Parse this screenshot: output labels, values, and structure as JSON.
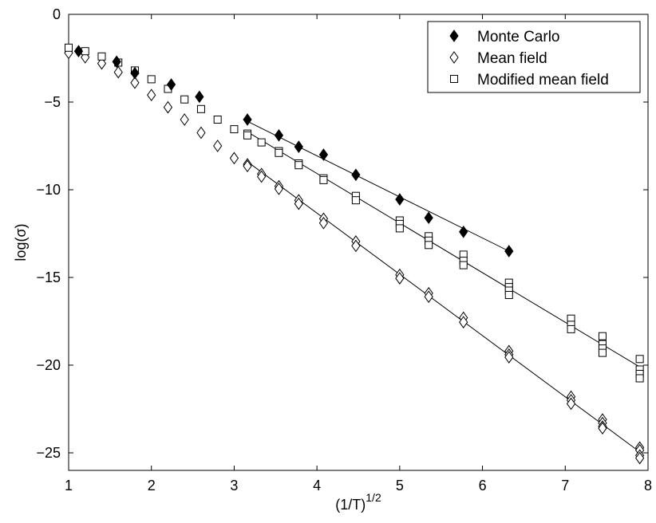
{
  "chart_data": {
    "type": "scatter",
    "title": "",
    "xlabel": "(1/T)",
    "xlabel_exponent": "1/2",
    "ylabel": "log(σ)",
    "xlim": [
      1,
      8
    ],
    "ylim": [
      -26,
      0
    ],
    "xticks": [
      1,
      2,
      3,
      4,
      5,
      6,
      7,
      8
    ],
    "yticks": [
      0,
      -5,
      -10,
      -15,
      -20,
      -25
    ],
    "grid": false,
    "legend_position": "top-right",
    "series": [
      {
        "name": "Monte Carlo",
        "marker": "filled-diamond",
        "points": [
          [
            1.12,
            -2.1
          ],
          [
            1.58,
            -2.7
          ],
          [
            1.8,
            -3.35
          ],
          [
            2.24,
            -4.0
          ],
          [
            2.58,
            -4.7
          ],
          [
            3.16,
            -6.0
          ],
          [
            3.54,
            -6.9
          ],
          [
            3.78,
            -7.55
          ],
          [
            4.08,
            -8.0
          ],
          [
            4.47,
            -9.15
          ],
          [
            5.0,
            -10.55
          ],
          [
            5.35,
            -11.6
          ],
          [
            5.77,
            -12.4
          ],
          [
            6.32,
            -13.5
          ]
        ],
        "fit_line": [
          [
            3.16,
            -6.1
          ],
          [
            6.32,
            -13.5
          ]
        ]
      },
      {
        "name": "Mean field",
        "marker": "open-diamond",
        "points": [
          [
            1.0,
            -2.2
          ],
          [
            1.2,
            -2.45
          ],
          [
            1.4,
            -2.8
          ],
          [
            1.6,
            -3.3
          ],
          [
            1.8,
            -3.9
          ],
          [
            2.0,
            -4.6
          ],
          [
            2.2,
            -5.3
          ],
          [
            2.4,
            -6.0
          ],
          [
            2.6,
            -6.75
          ],
          [
            2.8,
            -7.5
          ],
          [
            3.0,
            -8.2
          ],
          [
            3.16,
            -8.55
          ],
          [
            3.16,
            -8.65
          ],
          [
            3.33,
            -9.1
          ],
          [
            3.33,
            -9.25
          ],
          [
            3.54,
            -9.8
          ],
          [
            3.54,
            -9.95
          ],
          [
            3.78,
            -10.6
          ],
          [
            3.78,
            -10.8
          ],
          [
            4.08,
            -11.65
          ],
          [
            4.08,
            -11.9
          ],
          [
            4.47,
            -12.95
          ],
          [
            4.47,
            -13.2
          ],
          [
            5.0,
            -14.85
          ],
          [
            5.0,
            -15.05
          ],
          [
            5.35,
            -15.9
          ],
          [
            5.35,
            -16.1
          ],
          [
            5.77,
            -17.3
          ],
          [
            5.77,
            -17.55
          ],
          [
            6.32,
            -19.2
          ],
          [
            6.32,
            -19.4
          ],
          [
            6.32,
            -19.55
          ],
          [
            7.07,
            -21.8
          ],
          [
            7.07,
            -22.0
          ],
          [
            7.07,
            -22.2
          ],
          [
            7.45,
            -23.1
          ],
          [
            7.45,
            -23.3
          ],
          [
            7.45,
            -23.5
          ],
          [
            7.45,
            -23.6
          ],
          [
            7.9,
            -24.7
          ],
          [
            7.9,
            -24.85
          ],
          [
            7.9,
            -25.15
          ],
          [
            7.9,
            -25.3
          ]
        ],
        "fit_line": [
          [
            3.16,
            -8.4
          ],
          [
            7.9,
            -24.95
          ]
        ]
      },
      {
        "name": "Modified mean field",
        "marker": "open-square",
        "points": [
          [
            1.0,
            -1.9
          ],
          [
            1.2,
            -2.1
          ],
          [
            1.4,
            -2.4
          ],
          [
            1.6,
            -2.75
          ],
          [
            1.8,
            -3.2
          ],
          [
            2.0,
            -3.7
          ],
          [
            2.2,
            -4.25
          ],
          [
            2.4,
            -4.85
          ],
          [
            2.6,
            -5.4
          ],
          [
            2.8,
            -6.0
          ],
          [
            3.0,
            -6.55
          ],
          [
            3.16,
            -6.8
          ],
          [
            3.16,
            -6.9
          ],
          [
            3.33,
            -7.3
          ],
          [
            3.54,
            -7.8
          ],
          [
            3.54,
            -7.9
          ],
          [
            3.78,
            -8.5
          ],
          [
            3.78,
            -8.6
          ],
          [
            4.08,
            -9.35
          ],
          [
            4.08,
            -9.45
          ],
          [
            4.47,
            -10.35
          ],
          [
            4.47,
            -10.6
          ],
          [
            5.0,
            -11.75
          ],
          [
            5.0,
            -11.95
          ],
          [
            5.0,
            -12.2
          ],
          [
            5.35,
            -12.65
          ],
          [
            5.35,
            -12.9
          ],
          [
            5.35,
            -13.15
          ],
          [
            5.77,
            -13.7
          ],
          [
            5.77,
            -14.05
          ],
          [
            5.77,
            -14.3
          ],
          [
            6.32,
            -15.3
          ],
          [
            6.32,
            -15.55
          ],
          [
            6.32,
            -15.75
          ],
          [
            6.32,
            -16.0
          ],
          [
            7.07,
            -17.35
          ],
          [
            7.07,
            -17.7
          ],
          [
            7.07,
            -17.95
          ],
          [
            7.45,
            -18.35
          ],
          [
            7.45,
            -18.8
          ],
          [
            7.45,
            -19.05
          ],
          [
            7.45,
            -19.3
          ],
          [
            7.9,
            -19.65
          ],
          [
            7.9,
            -20.25
          ],
          [
            7.9,
            -20.5
          ],
          [
            7.9,
            -20.75
          ]
        ],
        "fit_line": [
          [
            3.16,
            -6.7
          ],
          [
            7.9,
            -20.1
          ]
        ]
      }
    ]
  }
}
